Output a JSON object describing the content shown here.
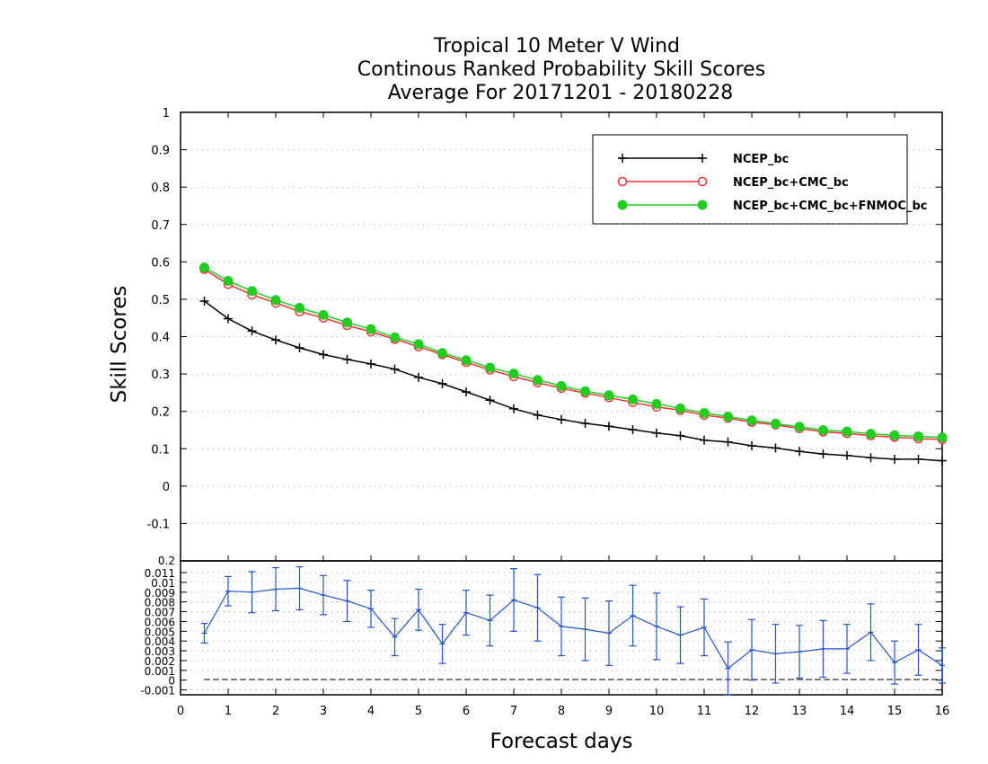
{
  "chart_data": [
    {
      "type": "line",
      "title": [
        "Tropical 10 Meter V Wind",
        "Continous Ranked Probability Skill Scores",
        "Average For 20171201 - 20180228"
      ],
      "ylabel": "Skill Scores",
      "xlabel": "",
      "xlim": [
        0,
        16
      ],
      "ylim": [
        -0.2,
        1
      ],
      "yticks": [
        "-0.1",
        "0",
        "0.1",
        "0.2",
        "0.3",
        "0.4",
        "0.5",
        "0.6",
        "0.7",
        "0.8",
        "0.9",
        "1"
      ],
      "grid": true,
      "legend_position": "top-right",
      "x": [
        0.5,
        1,
        1.5,
        2,
        2.5,
        3,
        3.5,
        4,
        4.5,
        5,
        5.5,
        6,
        6.5,
        7,
        7.5,
        8,
        8.5,
        9,
        9.5,
        10,
        10.5,
        11,
        11.5,
        12,
        12.5,
        13,
        13.5,
        14,
        14.5,
        15,
        15.5,
        16
      ],
      "series": [
        {
          "name": "NCEP_bc",
          "color": "#000000",
          "marker": "plus",
          "values": [
            0.495,
            0.448,
            0.415,
            0.391,
            0.37,
            0.352,
            0.339,
            0.327,
            0.313,
            0.291,
            0.274,
            0.252,
            0.23,
            0.207,
            0.19,
            0.178,
            0.168,
            0.16,
            0.151,
            0.142,
            0.135,
            0.123,
            0.118,
            0.108,
            0.102,
            0.093,
            0.086,
            0.082,
            0.076,
            0.072,
            0.072,
            0.068
          ]
        },
        {
          "name": "NCEP_bc+CMC_bc",
          "color": "#ee3333",
          "marker": "open-circle",
          "values": [
            0.58,
            0.54,
            0.512,
            0.49,
            0.467,
            0.45,
            0.43,
            0.413,
            0.393,
            0.373,
            0.352,
            0.331,
            0.311,
            0.293,
            0.277,
            0.262,
            0.249,
            0.237,
            0.224,
            0.212,
            0.203,
            0.19,
            0.182,
            0.171,
            0.164,
            0.154,
            0.145,
            0.141,
            0.135,
            0.131,
            0.127,
            0.125
          ]
        },
        {
          "name": "NCEP_bc+CMC_bc+FNMOC_bc",
          "color": "#22cc22",
          "marker": "filled-circle",
          "values": [
            0.585,
            0.549,
            0.522,
            0.498,
            0.477,
            0.458,
            0.438,
            0.42,
            0.398,
            0.38,
            0.356,
            0.337,
            0.317,
            0.301,
            0.284,
            0.268,
            0.254,
            0.243,
            0.232,
            0.22,
            0.208,
            0.196,
            0.186,
            0.176,
            0.167,
            0.159,
            0.15,
            0.146,
            0.14,
            0.136,
            0.133,
            0.13
          ]
        }
      ]
    },
    {
      "type": "line",
      "title": "",
      "xlabel": "Forecast days",
      "ylabel": "",
      "xlim": [
        0,
        16
      ],
      "ylim": [
        -0.0015,
        0.0122
      ],
      "yticks": [
        "-0.001",
        "0",
        "0.001",
        "0.002",
        "0.003",
        "0.004",
        "0.005",
        "0.006",
        "0.007",
        "0.008",
        "0.009",
        "0.01",
        "0.011"
      ],
      "xticks": [
        "0",
        "1",
        "2",
        "3",
        "4",
        "5",
        "6",
        "7",
        "8",
        "9",
        "10",
        "11",
        "12",
        "13",
        "14",
        "15",
        "16"
      ],
      "top_tick_label": "0.2",
      "reference_line": 0,
      "color": "#2255cc",
      "x": [
        0.5,
        1,
        1.5,
        2,
        2.5,
        3,
        3.5,
        4,
        4.5,
        5,
        5.5,
        6,
        6.5,
        7,
        7.5,
        8,
        8.5,
        9,
        9.5,
        10,
        10.5,
        11,
        11.5,
        12,
        12.5,
        13,
        13.5,
        14,
        14.5,
        15,
        15.5,
        16
      ],
      "values": [
        0.0048,
        0.0091,
        0.009,
        0.0093,
        0.0094,
        0.0087,
        0.0081,
        0.0073,
        0.0044,
        0.0072,
        0.0037,
        0.0069,
        0.0061,
        0.0082,
        0.0074,
        0.0055,
        0.0052,
        0.0048,
        0.0066,
        0.0055,
        0.0046,
        0.0054,
        0.0012,
        0.0031,
        0.0027,
        0.0029,
        0.0032,
        0.0032,
        0.0049,
        0.0018,
        0.0031,
        0.0015
      ],
      "error": [
        0.001,
        0.0015,
        0.0021,
        0.0022,
        0.0022,
        0.002,
        0.0021,
        0.0019,
        0.0019,
        0.0021,
        0.002,
        0.0023,
        0.0026,
        0.0032,
        0.0034,
        0.003,
        0.0032,
        0.0033,
        0.0031,
        0.0034,
        0.0029,
        0.0029,
        0.0027,
        0.0031,
        0.003,
        0.0027,
        0.0029,
        0.0025,
        0.0029,
        0.0022,
        0.0026,
        0.0018
      ]
    }
  ]
}
